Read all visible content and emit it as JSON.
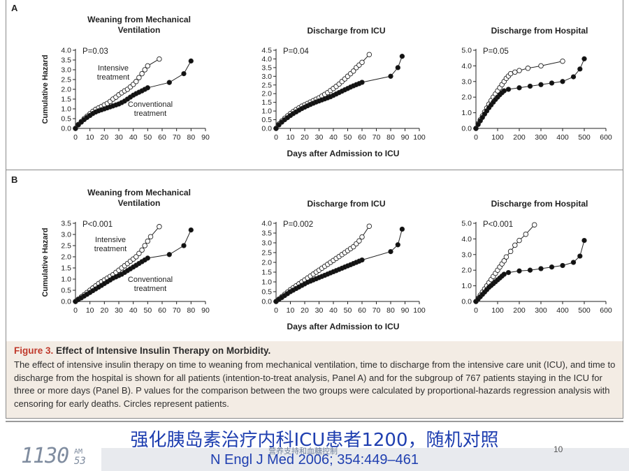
{
  "slide": {
    "title": "强化胰岛素治疗内科ICU患者1200，随机对照",
    "footer_label": "营养支持和血糖控制",
    "reference": "N Engl J Med 2006; 354:449–461",
    "page_number": "10",
    "clock": {
      "digits": "1130",
      "ampm": "AM",
      "seconds": "53"
    }
  },
  "caption": {
    "label": "Figure 3.",
    "title": "Effect of Intensive Insulin Therapy on Morbidity.",
    "body": "The effect of intensive insulin therapy on time to weaning from mechanical ventilation, time to discharge from the intensive care unit (ICU), and time to discharge from the hospital is shown for all patients (intention-to-treat analysis, Panel A) and for the subgroup of 767 patients staying in the ICU for three or more days (Panel B). P values for the comparison between the two groups were calculated by proportional-hazards regression analysis with censoring for early deaths. Circles represent patients."
  },
  "panels": [
    {
      "label": "A",
      "xaxis_title": "Days after Admission to ICU"
    },
    {
      "label": "B",
      "xaxis_title": "Days after Admission to ICU"
    }
  ],
  "chart_data": [
    {
      "type": "line",
      "panel": "A",
      "title": "Weaning from Mechanical\nVentilation",
      "ylabel": "Cumulative Hazard",
      "xlabel": "",
      "annotation": "P=0.03",
      "series_labels": [
        "Intensive\ntreatment",
        "Conventional\ntreatment"
      ],
      "xlim": [
        0,
        90
      ],
      "ylim": [
        0,
        4
      ],
      "xticks": [
        0,
        10,
        20,
        30,
        40,
        50,
        60,
        70,
        80,
        90
      ],
      "yticks": [
        "0.0",
        "0.5",
        "1.0",
        "1.5",
        "2.0",
        "2.5",
        "3.0",
        "3.5",
        "4.0"
      ],
      "series": [
        {
          "name": "Intensive treatment",
          "marker": "open",
          "x": [
            0,
            2,
            4,
            6,
            8,
            10,
            12,
            14,
            16,
            18,
            20,
            22,
            24,
            26,
            28,
            30,
            32,
            34,
            36,
            38,
            40,
            42,
            44,
            46,
            48,
            50,
            58
          ],
          "y": [
            0,
            0.2,
            0.35,
            0.5,
            0.62,
            0.75,
            0.87,
            0.97,
            1.05,
            1.12,
            1.2,
            1.28,
            1.38,
            1.5,
            1.6,
            1.72,
            1.82,
            1.92,
            2.0,
            2.12,
            2.25,
            2.4,
            2.6,
            2.8,
            3.0,
            3.2,
            3.55
          ]
        },
        {
          "name": "Conventional treatment",
          "marker": "filled",
          "x": [
            0,
            2,
            4,
            6,
            8,
            10,
            12,
            14,
            16,
            18,
            20,
            22,
            24,
            26,
            28,
            30,
            32,
            34,
            36,
            38,
            40,
            42,
            44,
            46,
            48,
            50,
            65,
            75,
            80
          ],
          "y": [
            0,
            0.18,
            0.32,
            0.45,
            0.56,
            0.66,
            0.76,
            0.84,
            0.9,
            0.95,
            1.0,
            1.05,
            1.1,
            1.15,
            1.2,
            1.25,
            1.32,
            1.4,
            1.5,
            1.6,
            1.7,
            1.78,
            1.85,
            1.92,
            2.0,
            2.08,
            2.35,
            2.8,
            3.45
          ]
        }
      ]
    },
    {
      "type": "line",
      "panel": "A",
      "title": "Discharge from ICU",
      "ylabel": "",
      "xlabel": "",
      "annotation": "P=0.04",
      "series_labels": [],
      "xlim": [
        0,
        100
      ],
      "ylim": [
        0,
        4.5
      ],
      "xticks": [
        0,
        10,
        20,
        30,
        40,
        50,
        60,
        70,
        80,
        90,
        100
      ],
      "yticks": [
        "0.0",
        "0.5",
        "1.0",
        "1.5",
        "2.0",
        "2.5",
        "3.0",
        "3.5",
        "4.0",
        "4.5"
      ],
      "series": [
        {
          "name": "Intensive treatment",
          "marker": "open",
          "x": [
            0,
            2,
            4,
            6,
            8,
            10,
            12,
            14,
            16,
            18,
            20,
            22,
            24,
            26,
            28,
            30,
            32,
            34,
            36,
            38,
            40,
            42,
            44,
            46,
            48,
            50,
            52,
            54,
            56,
            58,
            60,
            65
          ],
          "y": [
            0,
            0.25,
            0.42,
            0.58,
            0.72,
            0.85,
            0.97,
            1.08,
            1.18,
            1.28,
            1.36,
            1.44,
            1.52,
            1.6,
            1.68,
            1.76,
            1.86,
            1.96,
            2.06,
            2.18,
            2.3,
            2.42,
            2.55,
            2.7,
            2.85,
            3.0,
            3.15,
            3.3,
            3.5,
            3.65,
            3.8,
            4.25
          ]
        },
        {
          "name": "Conventional treatment",
          "marker": "filled",
          "x": [
            0,
            2,
            4,
            6,
            8,
            10,
            12,
            14,
            16,
            18,
            20,
            22,
            24,
            26,
            28,
            30,
            32,
            34,
            36,
            38,
            40,
            42,
            44,
            46,
            48,
            50,
            52,
            54,
            56,
            58,
            60,
            80,
            85,
            88
          ],
          "y": [
            0,
            0.2,
            0.36,
            0.5,
            0.62,
            0.74,
            0.85,
            0.95,
            1.05,
            1.14,
            1.22,
            1.3,
            1.38,
            1.45,
            1.52,
            1.58,
            1.64,
            1.7,
            1.76,
            1.82,
            1.9,
            1.98,
            2.06,
            2.14,
            2.22,
            2.3,
            2.38,
            2.45,
            2.52,
            2.58,
            2.65,
            3.0,
            3.5,
            4.15
          ]
        }
      ]
    },
    {
      "type": "line",
      "panel": "A",
      "title": "Discharge from Hospital",
      "ylabel": "",
      "xlabel": "",
      "annotation": "P=0.05",
      "series_labels": [],
      "xlim": [
        0,
        600
      ],
      "ylim": [
        0,
        5
      ],
      "xticks": [
        0,
        100,
        200,
        300,
        400,
        500,
        600
      ],
      "yticks": [
        "0.0",
        "1.0",
        "2.0",
        "3.0",
        "4.0",
        "5.0"
      ],
      "series": [
        {
          "name": "Intensive treatment",
          "marker": "open",
          "x": [
            0,
            10,
            20,
            30,
            40,
            50,
            60,
            70,
            80,
            90,
            100,
            110,
            120,
            130,
            140,
            150,
            160,
            180,
            200,
            240,
            300,
            400
          ],
          "y": [
            0,
            0.3,
            0.55,
            0.8,
            1.05,
            1.3,
            1.55,
            1.78,
            2.0,
            2.2,
            2.4,
            2.6,
            2.8,
            3.0,
            3.2,
            3.35,
            3.5,
            3.6,
            3.7,
            3.85,
            4.0,
            4.3
          ]
        },
        {
          "name": "Conventional treatment",
          "marker": "filled",
          "x": [
            0,
            10,
            20,
            30,
            40,
            50,
            60,
            70,
            80,
            90,
            100,
            110,
            120,
            130,
            150,
            200,
            250,
            300,
            350,
            400,
            450,
            480,
            500
          ],
          "y": [
            0,
            0.25,
            0.48,
            0.7,
            0.92,
            1.12,
            1.32,
            1.5,
            1.68,
            1.85,
            2.0,
            2.15,
            2.28,
            2.4,
            2.5,
            2.6,
            2.7,
            2.8,
            2.9,
            3.0,
            3.3,
            3.8,
            4.45
          ]
        }
      ]
    },
    {
      "type": "line",
      "panel": "B",
      "title": "Weaning from Mechanical\nVentilation",
      "ylabel": "Cumulative Hazard",
      "xlabel": "",
      "annotation": "P<0.001",
      "series_labels": [
        "Intensive\ntreatment",
        "Conventional\ntreatment"
      ],
      "xlim": [
        0,
        90
      ],
      "ylim": [
        0,
        3.5
      ],
      "xticks": [
        0,
        10,
        20,
        30,
        40,
        50,
        60,
        70,
        80,
        90
      ],
      "yticks": [
        "0.0",
        "0.5",
        "1.0",
        "1.5",
        "2.0",
        "2.5",
        "3.0",
        "3.5"
      ],
      "series": [
        {
          "name": "Intensive treatment",
          "marker": "open",
          "x": [
            0,
            2,
            4,
            6,
            8,
            10,
            12,
            14,
            16,
            18,
            20,
            22,
            24,
            26,
            28,
            30,
            32,
            34,
            36,
            38,
            40,
            42,
            44,
            46,
            48,
            50,
            52,
            58
          ],
          "y": [
            0,
            0.1,
            0.2,
            0.3,
            0.4,
            0.5,
            0.6,
            0.7,
            0.8,
            0.88,
            0.96,
            1.04,
            1.12,
            1.2,
            1.3,
            1.4,
            1.5,
            1.6,
            1.7,
            1.8,
            1.9,
            2.0,
            2.15,
            2.3,
            2.5,
            2.7,
            2.9,
            3.35
          ]
        },
        {
          "name": "Conventional treatment",
          "marker": "filled",
          "x": [
            0,
            2,
            4,
            6,
            8,
            10,
            12,
            14,
            16,
            18,
            20,
            22,
            24,
            26,
            28,
            30,
            32,
            34,
            36,
            38,
            40,
            42,
            44,
            46,
            48,
            50,
            65,
            75,
            80
          ],
          "y": [
            0,
            0.08,
            0.16,
            0.24,
            0.32,
            0.4,
            0.48,
            0.56,
            0.64,
            0.72,
            0.8,
            0.88,
            0.96,
            1.04,
            1.1,
            1.16,
            1.22,
            1.3,
            1.38,
            1.46,
            1.54,
            1.62,
            1.7,
            1.78,
            1.86,
            1.94,
            2.1,
            2.5,
            3.2
          ]
        }
      ]
    },
    {
      "type": "line",
      "panel": "B",
      "title": "Discharge from ICU",
      "ylabel": "",
      "xlabel": "",
      "annotation": "P=0.002",
      "series_labels": [],
      "xlim": [
        0,
        100
      ],
      "ylim": [
        0,
        4
      ],
      "xticks": [
        0,
        10,
        20,
        30,
        40,
        50,
        60,
        70,
        80,
        90,
        100
      ],
      "yticks": [
        "0.0",
        "0.5",
        "1.0",
        "1.5",
        "2.0",
        "2.5",
        "3.0",
        "3.5",
        "4.0"
      ],
      "series": [
        {
          "name": "Intensive treatment",
          "marker": "open",
          "x": [
            0,
            2,
            4,
            6,
            8,
            10,
            12,
            14,
            16,
            18,
            20,
            22,
            24,
            26,
            28,
            30,
            32,
            34,
            36,
            38,
            40,
            42,
            44,
            46,
            48,
            50,
            52,
            54,
            56,
            58,
            60,
            65
          ],
          "y": [
            0,
            0.12,
            0.24,
            0.36,
            0.48,
            0.6,
            0.7,
            0.8,
            0.9,
            1.0,
            1.1,
            1.2,
            1.3,
            1.4,
            1.5,
            1.6,
            1.7,
            1.8,
            1.9,
            2.0,
            2.1,
            2.2,
            2.3,
            2.4,
            2.5,
            2.6,
            2.7,
            2.8,
            2.95,
            3.1,
            3.3,
            3.85
          ]
        },
        {
          "name": "Conventional treatment",
          "marker": "filled",
          "x": [
            0,
            2,
            4,
            6,
            8,
            10,
            12,
            14,
            16,
            18,
            20,
            22,
            24,
            26,
            28,
            30,
            32,
            34,
            36,
            38,
            40,
            42,
            44,
            46,
            48,
            50,
            52,
            54,
            56,
            58,
            60,
            80,
            85,
            88
          ],
          "y": [
            0,
            0.1,
            0.2,
            0.3,
            0.4,
            0.5,
            0.58,
            0.66,
            0.74,
            0.82,
            0.9,
            0.98,
            1.04,
            1.1,
            1.16,
            1.22,
            1.28,
            1.34,
            1.4,
            1.46,
            1.52,
            1.58,
            1.64,
            1.7,
            1.76,
            1.82,
            1.88,
            1.94,
            2.0,
            2.06,
            2.12,
            2.55,
            2.9,
            3.7
          ]
        }
      ]
    },
    {
      "type": "line",
      "panel": "B",
      "title": "Discharge from Hospital",
      "ylabel": "",
      "xlabel": "",
      "annotation": "P<0.001",
      "series_labels": [],
      "xlim": [
        0,
        600
      ],
      "ylim": [
        0,
        5
      ],
      "xticks": [
        0,
        100,
        200,
        300,
        400,
        500,
        600
      ],
      "yticks": [
        "0.0",
        "1.0",
        "2.0",
        "3.0",
        "4.0",
        "5.0"
      ],
      "series": [
        {
          "name": "Intensive treatment",
          "marker": "open",
          "x": [
            0,
            10,
            20,
            30,
            40,
            50,
            60,
            70,
            80,
            90,
            100,
            110,
            120,
            130,
            140,
            160,
            180,
            200,
            230,
            270
          ],
          "y": [
            0,
            0.2,
            0.4,
            0.6,
            0.8,
            1.0,
            1.2,
            1.4,
            1.6,
            1.8,
            2.0,
            2.2,
            2.4,
            2.6,
            2.85,
            3.2,
            3.6,
            3.9,
            4.3,
            4.9
          ]
        },
        {
          "name": "Conventional treatment",
          "marker": "filled",
          "x": [
            0,
            10,
            20,
            30,
            40,
            50,
            60,
            70,
            80,
            90,
            100,
            110,
            120,
            130,
            150,
            200,
            250,
            300,
            350,
            400,
            450,
            480,
            500
          ],
          "y": [
            0,
            0.15,
            0.3,
            0.45,
            0.6,
            0.75,
            0.9,
            1.02,
            1.14,
            1.26,
            1.38,
            1.5,
            1.62,
            1.74,
            1.85,
            1.95,
            2.0,
            2.1,
            2.2,
            2.3,
            2.5,
            2.9,
            3.9
          ]
        }
      ]
    }
  ]
}
